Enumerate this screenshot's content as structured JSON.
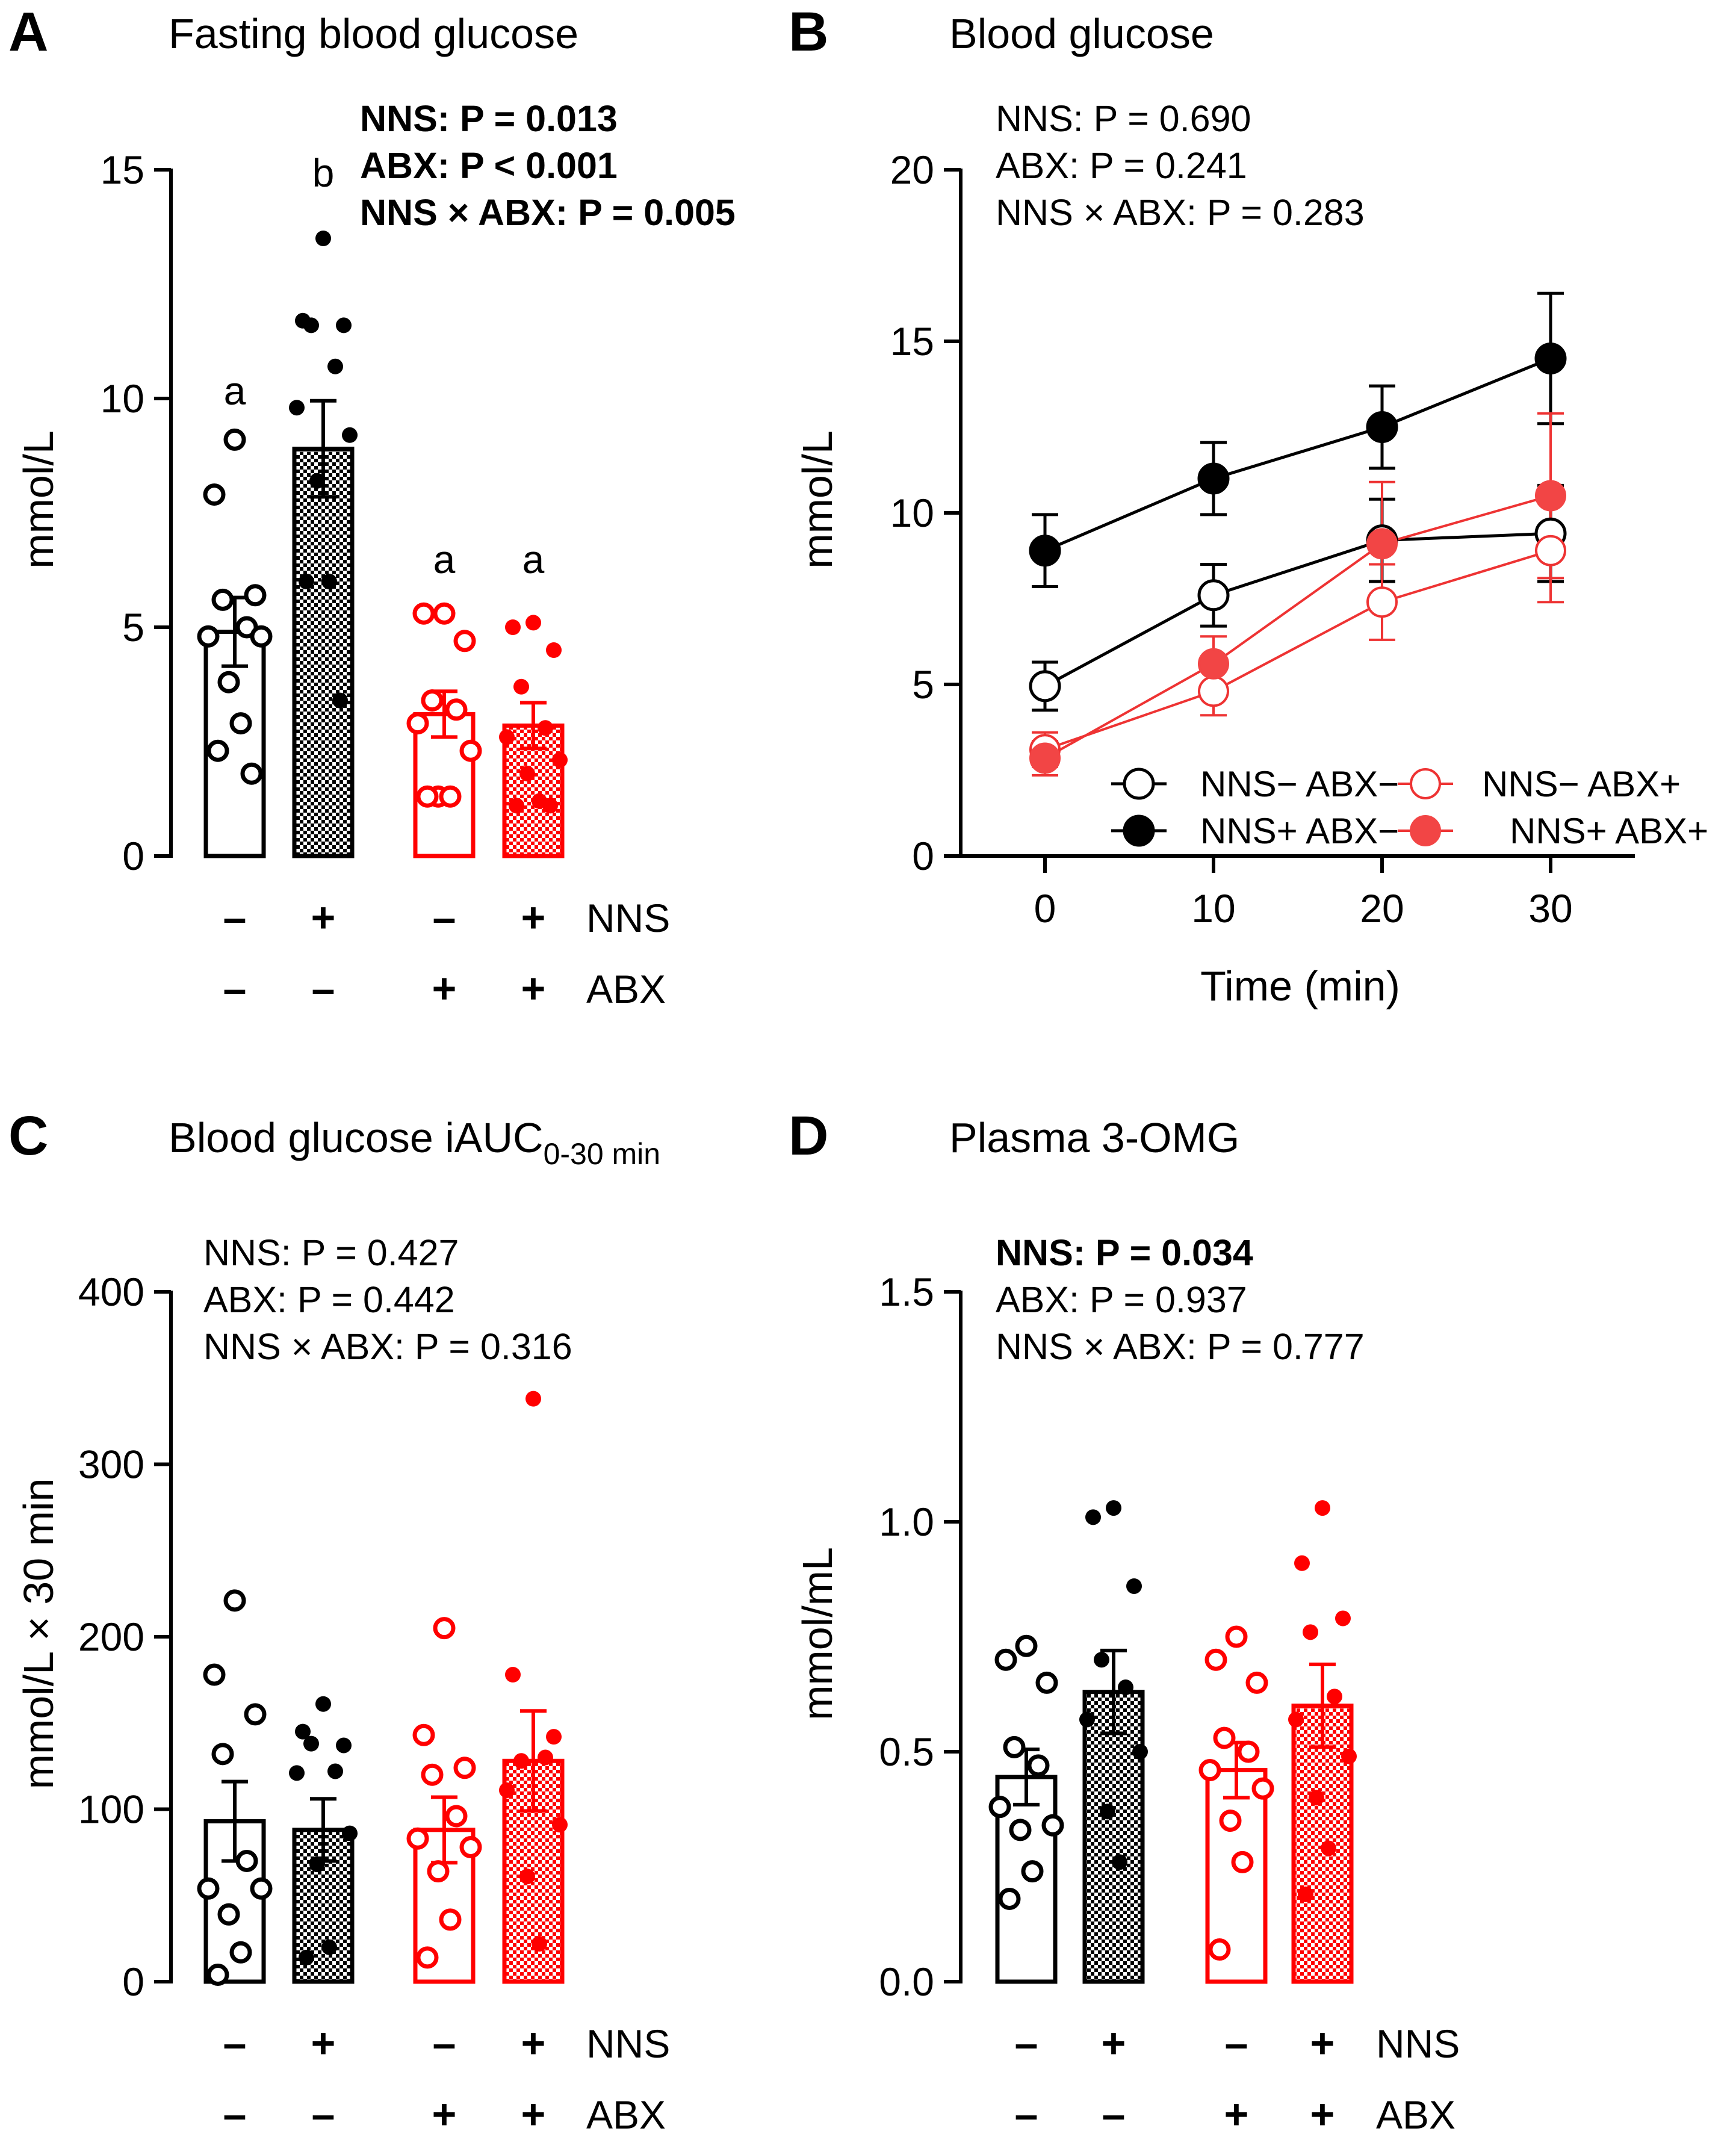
{
  "colors": {
    "black": "#000000",
    "red": "#ff0000",
    "red_line": "#ee3333",
    "red_fill": "#f24545",
    "white": "#ffffff"
  },
  "chart_data": [
    {
      "id": "A",
      "panel_label": "A",
      "type": "bar",
      "title": "Fasting blood glucose",
      "ylabel": "mmol/L",
      "ylim": [
        0,
        15
      ],
      "yticks": [
        "0",
        "5",
        "10",
        "15"
      ],
      "ytick_values": [
        0,
        5,
        10,
        15
      ],
      "stats": [
        {
          "text": "NNS: P = 0.013",
          "bold": true
        },
        {
          "text": "ABX: P < 0.001",
          "bold": true
        },
        {
          "text": "NNS × ABX: P = 0.005",
          "bold": true
        }
      ],
      "row_labels": [
        "NNS",
        "ABX"
      ],
      "groups": [
        {
          "nns": "–",
          "abx": "–",
          "color": "black",
          "pattern": "none",
          "mean": 4.9,
          "sem": 0.75,
          "sig": "a",
          "points": [
            9.1,
            7.9,
            5.7,
            5.6,
            5.0,
            4.8,
            4.8,
            3.8,
            2.9,
            2.3,
            1.8
          ]
        },
        {
          "nns": "+",
          "abx": "–",
          "color": "black",
          "pattern": "check",
          "mean": 8.9,
          "sem": 1.05,
          "sig": "b",
          "points": [
            13.5,
            11.7,
            11.6,
            11.6,
            10.7,
            9.8,
            9.2,
            8.2,
            6.0,
            6.0,
            3.4
          ]
        },
        {
          "nns": "–",
          "abx": "+",
          "color": "red",
          "pattern": "none",
          "mean": 3.1,
          "sem": 0.5,
          "sig": "a",
          "points": [
            5.3,
            5.3,
            4.7,
            3.4,
            3.2,
            2.9,
            2.3,
            1.3,
            1.3,
            1.3
          ]
        },
        {
          "nns": "+",
          "abx": "+",
          "color": "red",
          "pattern": "check",
          "mean": 2.85,
          "sem": 0.5,
          "sig": "a",
          "points": [
            5.1,
            5.0,
            4.5,
            3.7,
            2.8,
            2.6,
            2.1,
            1.8,
            1.2,
            1.1,
            1.1
          ]
        }
      ]
    },
    {
      "id": "B",
      "panel_label": "B",
      "type": "line",
      "title": "Blood glucose",
      "xlabel": "Time (min)",
      "ylabel": "mmol/L",
      "xlim": [
        -5,
        35
      ],
      "ylim": [
        0,
        20
      ],
      "xticks": [
        "0",
        "10",
        "20",
        "30"
      ],
      "xtick_values": [
        0,
        10,
        20,
        30
      ],
      "yticks": [
        "0",
        "5",
        "10",
        "15",
        "20"
      ],
      "ytick_values": [
        0,
        5,
        10,
        15,
        20
      ],
      "stats": [
        {
          "text": "NNS: P = 0.690",
          "bold": false
        },
        {
          "text": "ABX: P = 0.241",
          "bold": false
        },
        {
          "text": "NNS × ABX: P = 0.283",
          "bold": false
        }
      ],
      "x": [
        0,
        10,
        20,
        30
      ],
      "series": [
        {
          "name": "NNS− ABX−",
          "color": "black",
          "filled": false,
          "values": [
            4.95,
            7.6,
            9.2,
            9.4
          ],
          "sem": [
            0.7,
            0.9,
            1.2,
            1.4
          ]
        },
        {
          "name": "NNS+ ABX−",
          "color": "black",
          "filled": true,
          "values": [
            8.9,
            11.0,
            12.5,
            14.5
          ],
          "sem": [
            1.05,
            1.05,
            1.2,
            1.9
          ]
        },
        {
          "name": "NNS− ABX+",
          "color": "red",
          "filled": false,
          "values": [
            3.1,
            4.8,
            7.4,
            8.9
          ],
          "sem": [
            0.5,
            0.7,
            1.1,
            1.5
          ]
        },
        {
          "name": "NNS+ ABX+",
          "color": "red",
          "filled": true,
          "values": [
            2.85,
            5.6,
            9.1,
            10.5
          ],
          "sem": [
            0.5,
            0.8,
            1.8,
            2.4
          ]
        }
      ],
      "legend": {
        "labels": [
          "NNS− ABX−",
          "NNS− ABX+",
          "NNS+ ABX−",
          "NNS+ ABX+"
        ],
        "placement": "bottom-right"
      }
    },
    {
      "id": "C",
      "panel_label": "C",
      "type": "bar",
      "title": "Blood glucose iAUC",
      "title_sub": "0-30 min",
      "ylabel": "mmol/L × 30 min",
      "ylim": [
        0,
        400
      ],
      "yticks": [
        "0",
        "100",
        "200",
        "300",
        "400"
      ],
      "ytick_values": [
        0,
        100,
        200,
        300,
        400
      ],
      "stats": [
        {
          "text": "NNS: P = 0.427",
          "bold": false
        },
        {
          "text": "ABX: P = 0.442",
          "bold": false
        },
        {
          "text": "NNS × ABX: P = 0.316",
          "bold": false
        }
      ],
      "row_labels": [
        "NNS",
        "ABX"
      ],
      "groups": [
        {
          "nns": "–",
          "abx": "–",
          "color": "black",
          "pattern": "none",
          "mean": 93,
          "sem": 23,
          "sig": "",
          "points": [
            221,
            178,
            155,
            132,
            70,
            54,
            54,
            39,
            17,
            4
          ]
        },
        {
          "nns": "+",
          "abx": "–",
          "color": "black",
          "pattern": "check",
          "mean": 88,
          "sem": 18,
          "sig": "",
          "points": [
            161,
            145,
            137,
            138,
            122,
            121,
            86,
            68,
            20,
            14
          ]
        },
        {
          "nns": "–",
          "abx": "+",
          "color": "red",
          "pattern": "none",
          "mean": 88,
          "sem": 19,
          "sig": "",
          "points": [
            205,
            143,
            124,
            120,
            96,
            83,
            78,
            64,
            36,
            14
          ]
        },
        {
          "nns": "+",
          "abx": "+",
          "color": "red",
          "pattern": "check",
          "mean": 128,
          "sem": 29,
          "sig": "",
          "points": [
            338,
            178,
            142,
            128,
            130,
            111,
            91,
            61,
            22
          ]
        }
      ]
    },
    {
      "id": "D",
      "panel_label": "D",
      "type": "bar",
      "title": "Plasma 3-OMG",
      "ylabel": "mmol/mL",
      "ylim": [
        0,
        1.5
      ],
      "yticks": [
        "0.0",
        "0.5",
        "1.0",
        "1.5"
      ],
      "ytick_values": [
        0,
        0.5,
        1.0,
        1.5
      ],
      "stats": [
        {
          "text": "NNS: P = 0.034",
          "bold": true
        },
        {
          "text": "ABX: P = 0.937",
          "bold": false
        },
        {
          "text": "NNS × ABX: P = 0.777",
          "bold": false
        }
      ],
      "row_labels": [
        "NNS",
        "ABX"
      ],
      "groups": [
        {
          "nns": "–",
          "abx": "–",
          "color": "black",
          "pattern": "none",
          "mean": 0.445,
          "sem": 0.06,
          "sig": "",
          "points": [
            0.73,
            0.7,
            0.65,
            0.51,
            0.47,
            0.38,
            0.34,
            0.33,
            0.24,
            0.18
          ]
        },
        {
          "nns": "+",
          "abx": "–",
          "color": "black",
          "pattern": "check",
          "mean": 0.63,
          "sem": 0.09,
          "sig": "",
          "points": [
            1.03,
            1.01,
            0.86,
            0.7,
            0.64,
            0.57,
            0.5,
            0.37,
            0.26
          ]
        },
        {
          "nns": "–",
          "abx": "+",
          "color": "red",
          "pattern": "none",
          "mean": 0.46,
          "sem": 0.06,
          "sig": "",
          "points": [
            0.75,
            0.7,
            0.65,
            0.53,
            0.5,
            0.46,
            0.42,
            0.35,
            0.26,
            0.07
          ]
        },
        {
          "nns": "+",
          "abx": "+",
          "color": "red",
          "pattern": "check",
          "mean": 0.6,
          "sem": 0.09,
          "sig": "",
          "points": [
            1.03,
            0.91,
            0.79,
            0.76,
            0.62,
            0.57,
            0.49,
            0.4,
            0.29,
            0.19
          ]
        }
      ]
    }
  ]
}
